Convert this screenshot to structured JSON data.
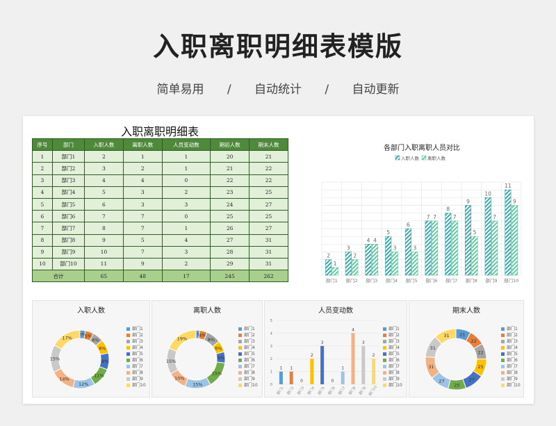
{
  "header": {
    "title": "入职离职明细表模版",
    "tags": [
      "简单易用",
      "/",
      "自动统计",
      "/",
      "自动更新"
    ]
  },
  "table": {
    "title": "入职离职明细表",
    "columns": [
      "序号",
      "部门",
      "入职人数",
      "离职人数",
      "人员变动数",
      "期初人数",
      "期末人数"
    ],
    "rows": [
      [
        "1",
        "部门1",
        "2",
        "1",
        "1",
        "20",
        "21"
      ],
      [
        "2",
        "部门2",
        "3",
        "2",
        "1",
        "21",
        "22"
      ],
      [
        "3",
        "部门3",
        "4",
        "4",
        "0",
        "22",
        "22"
      ],
      [
        "4",
        "部门4",
        "5",
        "3",
        "2",
        "23",
        "25"
      ],
      [
        "5",
        "部门5",
        "6",
        "3",
        "3",
        "24",
        "27"
      ],
      [
        "6",
        "部门6",
        "7",
        "7",
        "0",
        "25",
        "25"
      ],
      [
        "7",
        "部门7",
        "8",
        "7",
        "1",
        "26",
        "27"
      ],
      [
        "8",
        "部门8",
        "9",
        "5",
        "4",
        "27",
        "31"
      ],
      [
        "9",
        "部门9",
        "10",
        "7",
        "3",
        "28",
        "31"
      ],
      [
        "10",
        "部门10",
        "11",
        "9",
        "2",
        "29",
        "31"
      ]
    ],
    "total": [
      "合计",
      "65",
      "48",
      "17",
      "245",
      "262"
    ]
  },
  "colors": {
    "header_green": "#4e8a3a",
    "cell_green": "#e2efd9",
    "total_green": "#a9cf8c",
    "hire_bar": "#3aa6a6",
    "leave_bar": "#5fc9a0",
    "dept_palette": [
      "#5b9bd5",
      "#ed7d31",
      "#a5a5a5",
      "#ffc000",
      "#4472c4",
      "#70ad47",
      "#9dc3e6",
      "#f4b183",
      "#c9c9c9",
      "#ffd966"
    ]
  },
  "charts": {
    "dept_labels": [
      "部门1",
      "部门2",
      "部门3",
      "部门4",
      "部门5",
      "部门6",
      "部门7",
      "部门8",
      "部门9",
      "部门10"
    ],
    "hire_donut": {
      "title": "入职人数",
      "labels": [
        "3%",
        "5%",
        "6%",
        "8%",
        "9%",
        "11%",
        "12%",
        "14%",
        "15%",
        "17%"
      ]
    },
    "leave_donut": {
      "title": "离职人数",
      "labels": [
        "2%",
        "4%",
        "8%",
        "6%",
        "6%",
        "15%",
        "15%",
        "10%",
        "15%",
        "19%"
      ]
    },
    "change_bar": {
      "title": "人员变动数",
      "yticks": [
        "0",
        "1",
        "2",
        "3",
        "4",
        "5"
      ]
    },
    "end_donut": {
      "title": "期末人数"
    }
  },
  "chart_data": [
    {
      "type": "bar",
      "title": "各部门入职离职人员对比",
      "categories": [
        "部门1",
        "部门2",
        "部门3",
        "部门4",
        "部门5",
        "部门6",
        "部门7",
        "部门8",
        "部门9",
        "部门10"
      ],
      "series": [
        {
          "name": "入职人数",
          "values": [
            2,
            3,
            4,
            5,
            6,
            7,
            8,
            9,
            10,
            11
          ]
        },
        {
          "name": "离职人数",
          "values": [
            1,
            2,
            4,
            3,
            3,
            7,
            7,
            5,
            7,
            9
          ]
        }
      ],
      "ylim": [
        0,
        12
      ],
      "grid": true,
      "legend": "top"
    },
    {
      "type": "pie",
      "title": "入职人数",
      "categories": [
        "部门1",
        "部门2",
        "部门3",
        "部门4",
        "部门5",
        "部门6",
        "部门7",
        "部门8",
        "部门9",
        "部门10"
      ],
      "values": [
        2,
        3,
        4,
        5,
        6,
        7,
        8,
        9,
        10,
        11
      ],
      "legend": "right"
    },
    {
      "type": "pie",
      "title": "离职人数",
      "categories": [
        "部门1",
        "部门2",
        "部门3",
        "部门4",
        "部门5",
        "部门6",
        "部门7",
        "部门8",
        "部门9",
        "部门10"
      ],
      "values": [
        1,
        2,
        4,
        3,
        3,
        7,
        7,
        5,
        7,
        9
      ],
      "legend": "right"
    },
    {
      "type": "bar",
      "title": "人员变动数",
      "categories": [
        "部门1",
        "部门2",
        "部门3",
        "部门4",
        "部门5",
        "部门6",
        "部门7",
        "部门8",
        "部门9",
        "部门10"
      ],
      "values": [
        1,
        1,
        0,
        2,
        3,
        0,
        1,
        4,
        3,
        2
      ],
      "ylim": [
        0,
        5
      ],
      "legend": "right"
    },
    {
      "type": "pie",
      "title": "期末人数",
      "categories": [
        "部门1",
        "部门2",
        "部门3",
        "部门4",
        "部门5",
        "部门6",
        "部门7",
        "部门8",
        "部门9",
        "部门10"
      ],
      "values": [
        21,
        22,
        22,
        25,
        27,
        25,
        27,
        31,
        31,
        31
      ],
      "legend": "right"
    }
  ]
}
